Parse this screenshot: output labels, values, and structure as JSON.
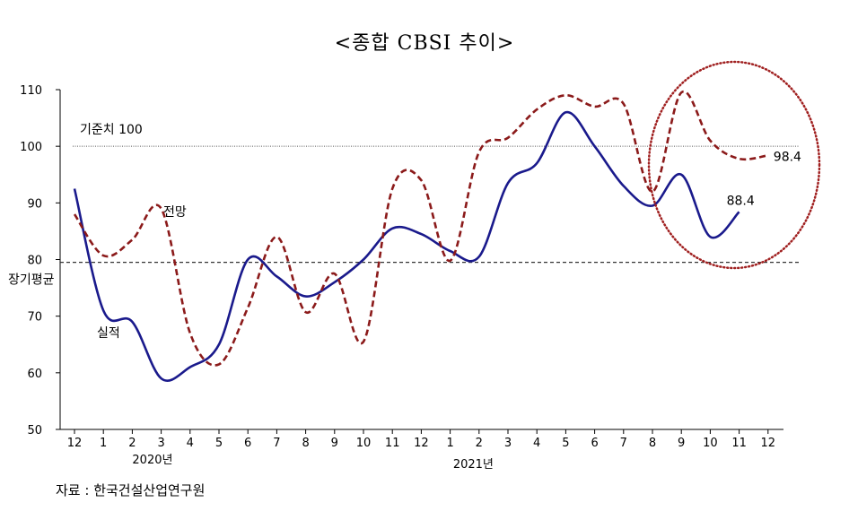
{
  "title": "<종합 CBSI 추이>",
  "source": "자료 : 한국건설산업연구원",
  "chart_data": {
    "type": "line",
    "ylim": [
      50,
      110
    ],
    "y_ticks": [
      "110",
      "100",
      "90",
      "80",
      "70",
      "60",
      "50"
    ],
    "categories": [
      "12",
      "1",
      "2",
      "3",
      "4",
      "5",
      "6",
      "7",
      "8",
      "9",
      "10",
      "11",
      "12",
      "1",
      "2",
      "3",
      "4",
      "5",
      "6",
      "7",
      "8",
      "9",
      "10",
      "11",
      "12"
    ],
    "year_labels": [
      "2020년",
      "2021년"
    ],
    "series": [
      {
        "name": "실적",
        "color": "#1a1a8c",
        "style": "solid",
        "values": [
          92.5,
          71,
          69,
          59,
          61,
          65,
          80,
          77,
          73.5,
          76,
          80,
          85.5,
          84.5,
          81.5,
          80.5,
          93.5,
          97,
          106,
          100,
          93,
          89.5,
          95,
          84,
          88.4,
          null
        ]
      },
      {
        "name": "전망",
        "color": "#8b1a1a",
        "style": "dashed",
        "values": [
          88,
          80.7,
          83.5,
          89,
          67,
          61.5,
          71.5,
          84,
          70.7,
          77.5,
          65.5,
          92.5,
          94,
          79.8,
          99,
          101.5,
          106.5,
          109,
          107,
          107.5,
          92,
          109.5,
          101,
          97.8,
          98.4
        ]
      }
    ],
    "reference_lines": [
      {
        "label": "기준치 100",
        "value": 100,
        "style": "dotted"
      },
      {
        "label": "장기평균",
        "value": 79.5,
        "style": "dashed"
      }
    ],
    "annotations": {
      "forecast_label": "전망",
      "actual_label": "실적",
      "actual_last": "88.4",
      "forecast_last": "98.4"
    },
    "highlight": "dotted circle around last months"
  }
}
